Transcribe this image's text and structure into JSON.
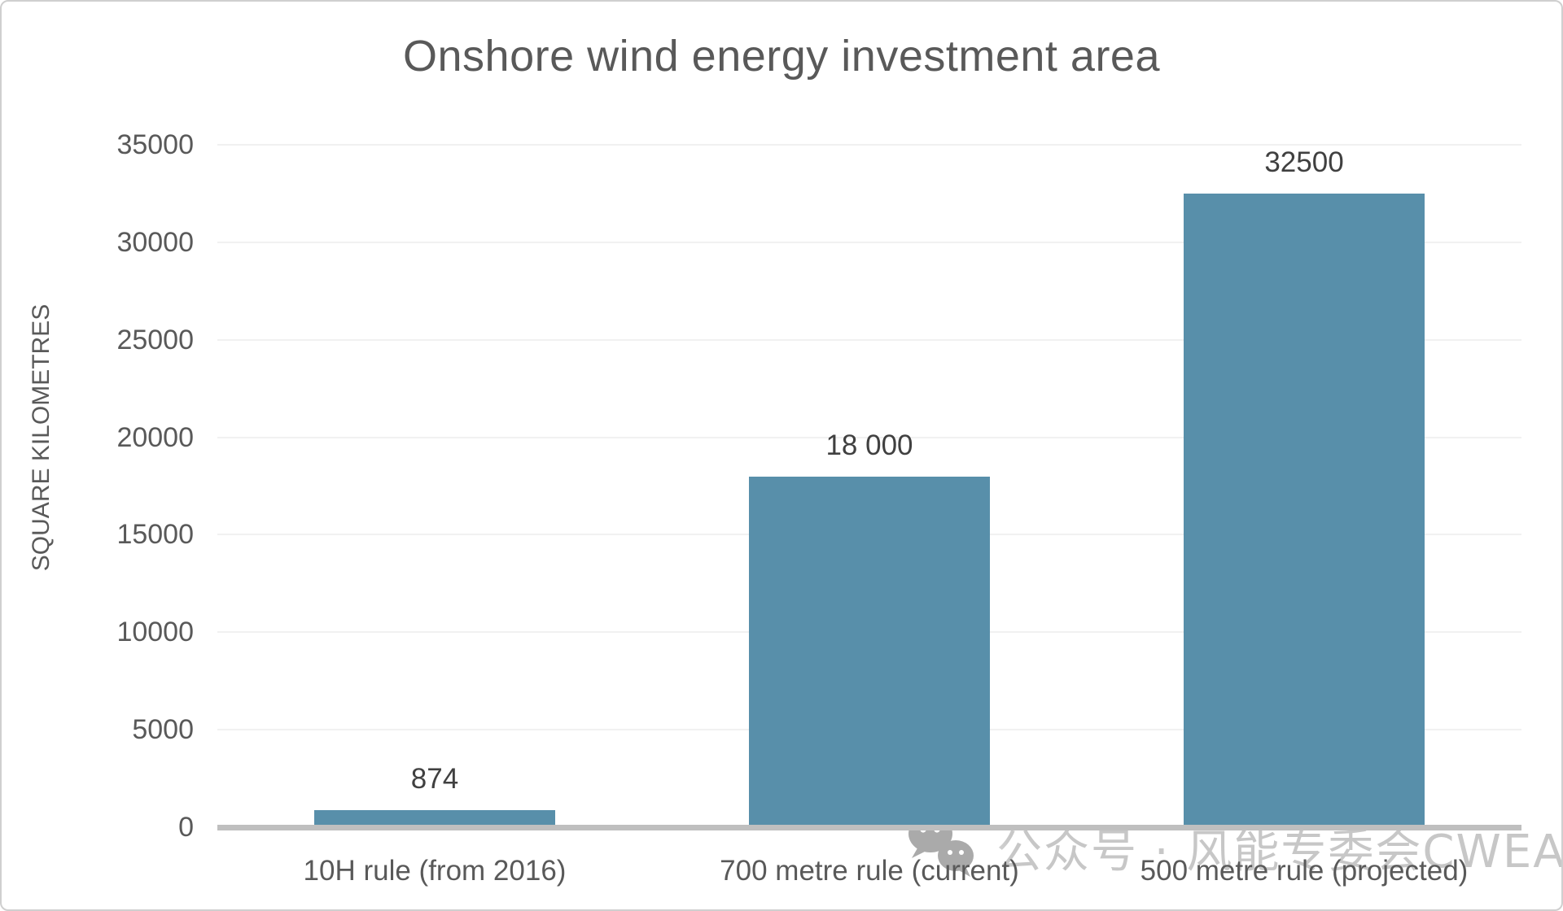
{
  "page": {
    "background": "#ffffff",
    "border_color": "#cfcfcf"
  },
  "chart_data": {
    "type": "bar",
    "title": "Onshore wind energy investment area",
    "ylabel": "SQUARE KILOMETRES",
    "xlabel": "",
    "categories": [
      "10H rule (from 2016)",
      "700 metre rule (current)",
      "500 metre rule (projected)"
    ],
    "values": [
      874,
      18000,
      32500
    ],
    "value_labels": [
      "874",
      "18 000",
      "32500"
    ],
    "ylim": [
      0,
      35000
    ],
    "yticks": [
      0,
      5000,
      10000,
      15000,
      20000,
      25000,
      30000,
      35000
    ],
    "grid": true,
    "legend_position": "none",
    "bar_color": "#588FAA",
    "grid_color": "#f1f1f1",
    "axis_line_color": "#bfbfbf",
    "tick_label_color": "#595959",
    "value_label_color": "#404040",
    "title_color": "#595959"
  },
  "watermark": {
    "icon": "wechat-icon",
    "text": "公众号 · 风能专委会CWEA",
    "color": "#c7c7c7"
  }
}
